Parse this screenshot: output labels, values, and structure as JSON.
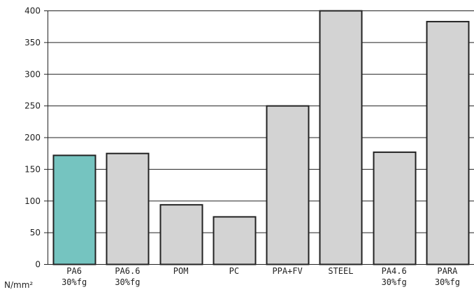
{
  "chart_data": {
    "type": "bar",
    "categories": [
      [
        "PA6",
        "30%fg"
      ],
      [
        "PA6.6",
        "30%fg"
      ],
      [
        "POM"
      ],
      [
        "PC"
      ],
      [
        "PPA+FV"
      ],
      [
        "STEEL"
      ],
      [
        "PA4.6",
        "30%fg"
      ],
      [
        "PARA",
        "30%fg"
      ]
    ],
    "values": [
      172,
      175,
      94,
      75,
      250,
      400,
      177,
      383
    ],
    "ylabel": "N/mm²",
    "ylim": [
      0,
      400
    ],
    "yticks": [
      0,
      50,
      100,
      150,
      200,
      250,
      300,
      350,
      400
    ],
    "grid": true,
    "legend": "none",
    "colors": {
      "highlight": "#75c4c0",
      "bar": "#d3d3d3",
      "outline": "#222222",
      "grid": "#222222"
    },
    "highlight_index": 0
  }
}
